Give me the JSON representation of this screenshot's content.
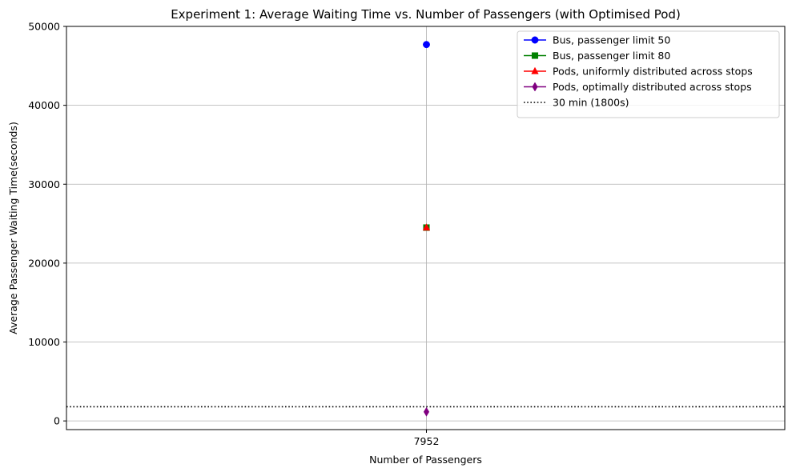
{
  "chart_data": {
    "type": "scatter",
    "title": "Experiment 1: Average Waiting Time vs. Number of Passengers (with Optimised Pod)",
    "xlabel": "Number of Passengers",
    "ylabel": "Average Passenger Waiting Time(seconds)",
    "x_categories": [
      "7952"
    ],
    "ylim": [
      -1100,
      50000
    ],
    "y_ticks": [
      0,
      10000,
      20000,
      30000,
      40000,
      50000
    ],
    "grid": true,
    "legend_placement": "top-right",
    "series": [
      {
        "name": "Bus, passenger limit 50",
        "color": "#0000ff",
        "marker": "circle",
        "values": [
          47700
        ]
      },
      {
        "name": "Bus, passenger limit 80",
        "color": "#008000",
        "marker": "square",
        "values": [
          24500
        ]
      },
      {
        "name": "Pods, uniformly distributed across stops",
        "color": "#ff0000",
        "marker": "triangle-up",
        "values": [
          24500
        ]
      },
      {
        "name": "Pods, optimally distributed across stops",
        "color": "#800080",
        "marker": "thin-diamond",
        "values": [
          1150
        ]
      }
    ],
    "reference_lines": [
      {
        "name": "30 min (1800s)",
        "color": "#000000",
        "style": "dotted",
        "y": 1800
      }
    ]
  }
}
